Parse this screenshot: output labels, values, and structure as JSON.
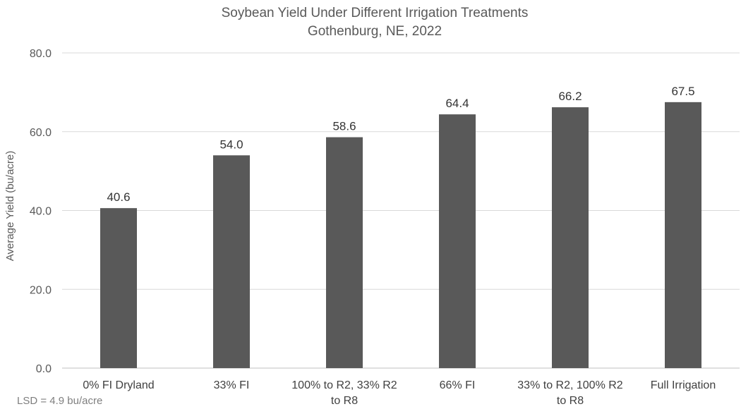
{
  "chart_data": {
    "type": "bar",
    "title": "Soybean Yield Under Different Irrigation Treatments",
    "subtitle": "Gothenburg, NE, 2022",
    "xlabel": "",
    "ylabel": "Average Yield (bu/acre)",
    "ylim": [
      0,
      80
    ],
    "yticks": [
      "0.0",
      "20.0",
      "40.0",
      "60.0",
      "80.0"
    ],
    "grid": true,
    "legend": "none",
    "bar_color": "#595959",
    "categories": [
      "0% FI Dryland",
      "33% FI",
      "100% to R2, 33% R2 to R8",
      "66% FI",
      "33% to R2, 100% R2 to R8",
      "Full Irrigation"
    ],
    "category_lines": [
      [
        "0% FI Dryland"
      ],
      [
        "33% FI"
      ],
      [
        "100% to R2, 33% R2",
        "to R8"
      ],
      [
        "66% FI"
      ],
      [
        "33% to R2, 100% R2",
        "to R8"
      ],
      [
        "Full Irrigation"
      ]
    ],
    "values": [
      40.6,
      54.0,
      58.6,
      64.4,
      66.2,
      67.5
    ],
    "data_labels": [
      "40.6",
      "54.0",
      "58.6",
      "64.4",
      "66.2",
      "67.5"
    ],
    "annotation": "LSD = 4.9 bu/acre"
  }
}
